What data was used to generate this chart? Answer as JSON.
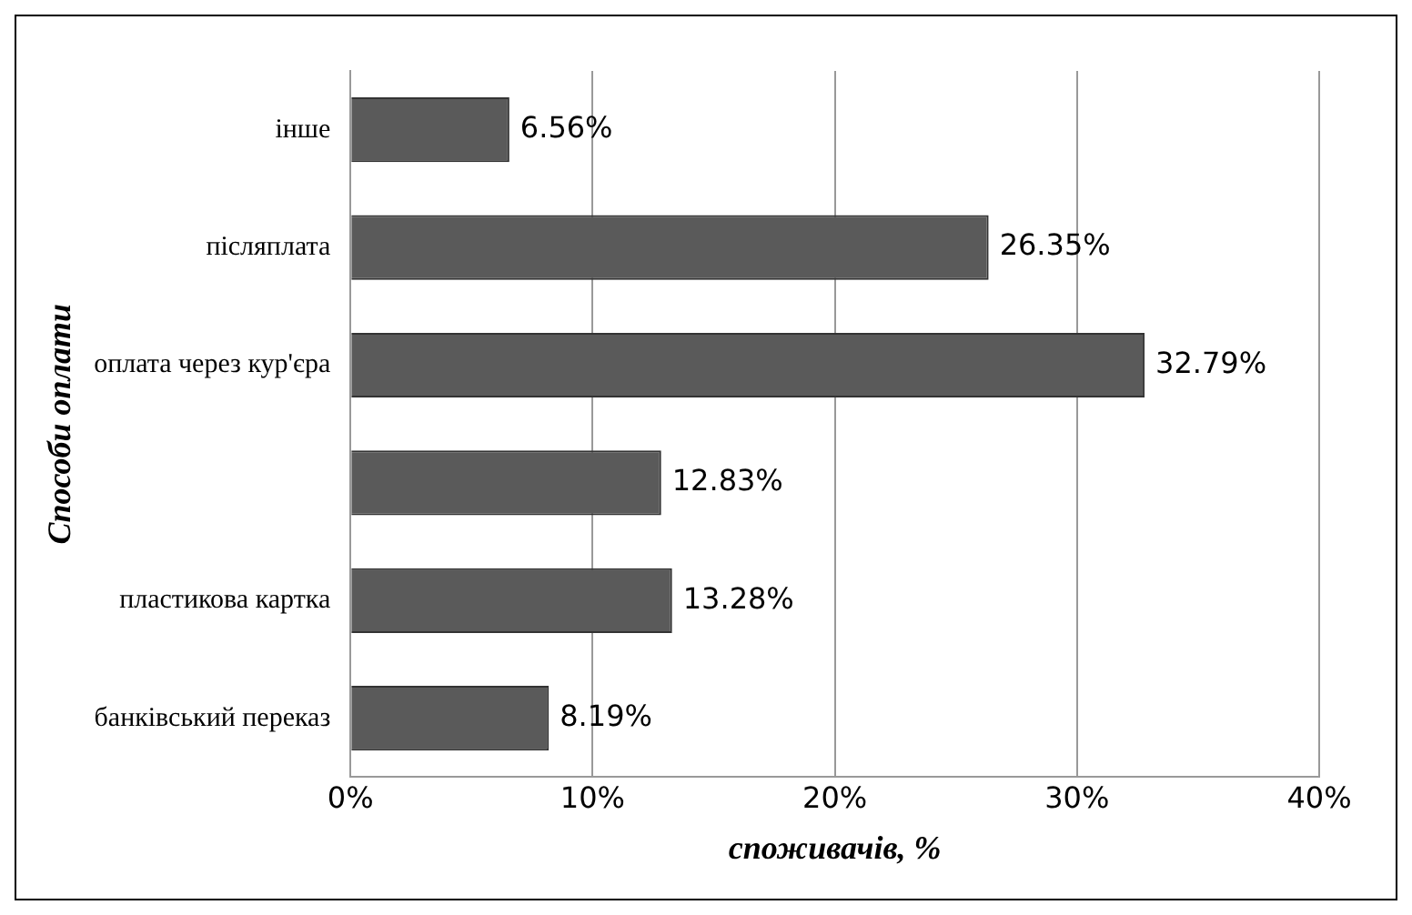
{
  "chart_data": {
    "type": "bar",
    "orientation": "horizontal",
    "categories": [
      "інше",
      "післяплата",
      "оплата через кур'єра",
      null,
      "пластикова картка",
      "банківський переказ"
    ],
    "values": [
      6.56,
      26.35,
      32.79,
      12.83,
      13.28,
      8.19
    ],
    "value_labels": [
      "6.56%",
      "26.35%",
      "32.79%",
      "12.83%",
      "13.28%",
      "8.19%"
    ],
    "color": "#5a5a5a",
    "xlim": [
      0,
      40
    ],
    "xticks": [
      {
        "value": 0,
        "label": "0%"
      },
      {
        "value": 10,
        "label": "10%"
      },
      {
        "value": 20,
        "label": "20%"
      },
      {
        "value": 30,
        "label": "30%"
      },
      {
        "value": 40,
        "label": "40%"
      }
    ],
    "grid": "x",
    "xlabel": "споживачів, %",
    "ylabel": "Способи оплати"
  }
}
